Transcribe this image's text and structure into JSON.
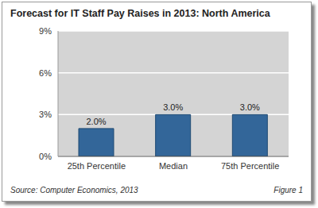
{
  "chart_data": {
    "type": "bar",
    "title": "Forecast for IT Staff Pay Raises in 2013: North America",
    "categories": [
      "25th Percentile",
      "Median",
      "75th Percentile"
    ],
    "values": [
      2.0,
      3.0,
      3.0
    ],
    "value_labels": [
      "2.0%",
      "3.0%",
      "3.0%"
    ],
    "data_labels": true,
    "color": "#336699",
    "ylim": [
      0,
      9
    ],
    "yticks": [
      {
        "value": 0,
        "label": "0%"
      },
      {
        "value": 3,
        "label": "3%"
      },
      {
        "value": 6,
        "label": "6%"
      },
      {
        "value": 9,
        "label": "9%"
      }
    ],
    "grid": true,
    "annotations": [
      "Source: Computer Economics, 2013",
      "Figure 1"
    ]
  }
}
